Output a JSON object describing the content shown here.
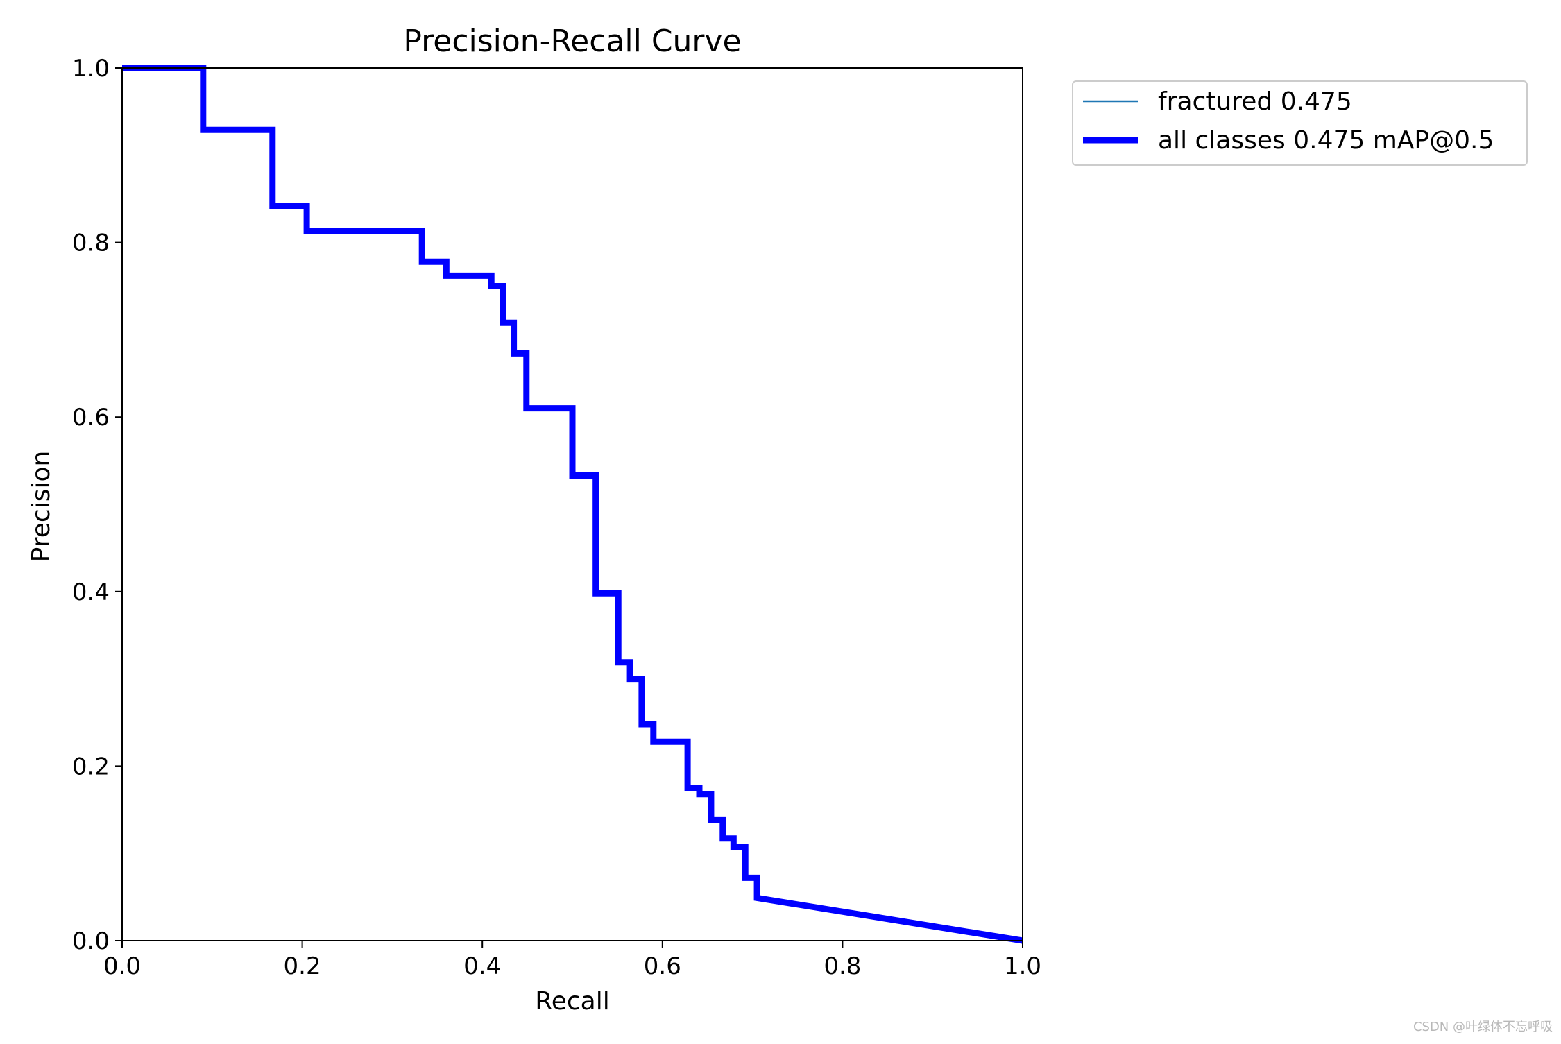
{
  "watermark": "CSDN @叶绿体不忘呼吸",
  "colors": {
    "series_fractured": "#1f77b4",
    "series_all": "#0000ff",
    "axes": "#000000",
    "legend_border": "#cccccc"
  },
  "chart_data": {
    "type": "line",
    "title": "Precision-Recall Curve",
    "xlabel": "Recall",
    "ylabel": "Precision",
    "xlim": [
      0.0,
      1.0
    ],
    "ylim": [
      0.0,
      1.0
    ],
    "xticks": [
      "0.0",
      "0.2",
      "0.4",
      "0.6",
      "0.8",
      "1.0"
    ],
    "yticks": [
      "0.0",
      "0.2",
      "0.4",
      "0.6",
      "0.8",
      "1.0"
    ],
    "grid": false,
    "legend_position": "outside upper right",
    "series": [
      {
        "name": "fractured 0.475",
        "style": "thin",
        "x": [
          0.0,
          0.09,
          0.09,
          0.167,
          0.167,
          0.205,
          0.205,
          0.333,
          0.333,
          0.36,
          0.36,
          0.41,
          0.41,
          0.423,
          0.423,
          0.435,
          0.435,
          0.449,
          0.449,
          0.5,
          0.5,
          0.526,
          0.526,
          0.551,
          0.551,
          0.564,
          0.564,
          0.577,
          0.577,
          0.59,
          0.59,
          0.628,
          0.628,
          0.641,
          0.641,
          0.654,
          0.654,
          0.667,
          0.667,
          0.679,
          0.679,
          0.692,
          0.692,
          0.705,
          0.705,
          1.0
        ],
        "y": [
          1.0,
          1.0,
          0.929,
          0.929,
          0.842,
          0.842,
          0.813,
          0.813,
          0.778,
          0.778,
          0.762,
          0.762,
          0.75,
          0.75,
          0.708,
          0.708,
          0.673,
          0.673,
          0.61,
          0.61,
          0.533,
          0.533,
          0.398,
          0.398,
          0.319,
          0.319,
          0.3,
          0.3,
          0.248,
          0.248,
          0.228,
          0.228,
          0.175,
          0.175,
          0.168,
          0.168,
          0.138,
          0.138,
          0.117,
          0.117,
          0.107,
          0.107,
          0.072,
          0.072,
          0.049,
          0.0
        ]
      },
      {
        "name": "all classes 0.475 mAP@0.5",
        "style": "thick",
        "x": [
          0.0,
          0.09,
          0.09,
          0.167,
          0.167,
          0.205,
          0.205,
          0.333,
          0.333,
          0.36,
          0.36,
          0.41,
          0.41,
          0.423,
          0.423,
          0.435,
          0.435,
          0.449,
          0.449,
          0.5,
          0.5,
          0.526,
          0.526,
          0.551,
          0.551,
          0.564,
          0.564,
          0.577,
          0.577,
          0.59,
          0.59,
          0.628,
          0.628,
          0.641,
          0.641,
          0.654,
          0.654,
          0.667,
          0.667,
          0.679,
          0.679,
          0.692,
          0.692,
          0.705,
          0.705,
          1.0
        ],
        "y": [
          1.0,
          1.0,
          0.929,
          0.929,
          0.842,
          0.842,
          0.813,
          0.813,
          0.778,
          0.778,
          0.762,
          0.762,
          0.75,
          0.75,
          0.708,
          0.708,
          0.673,
          0.673,
          0.61,
          0.61,
          0.533,
          0.533,
          0.398,
          0.398,
          0.319,
          0.319,
          0.3,
          0.3,
          0.248,
          0.248,
          0.228,
          0.228,
          0.175,
          0.175,
          0.168,
          0.168,
          0.138,
          0.138,
          0.117,
          0.117,
          0.107,
          0.107,
          0.072,
          0.072,
          0.049,
          0.0
        ]
      }
    ]
  }
}
